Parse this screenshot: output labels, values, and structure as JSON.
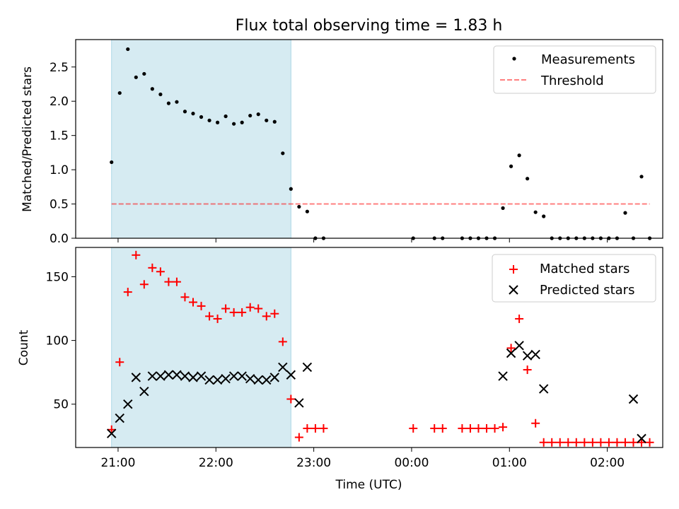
{
  "chart_data": {
    "type": "scatter",
    "title": "Flux total observing time = 1.83 h",
    "xlabel": "Time (UTC)",
    "x_tick_labels": [
      {
        "t": 1260,
        "label": "21:00"
      },
      {
        "t": 1320,
        "label": "22:00"
      },
      {
        "t": 1380,
        "label": "23:00"
      },
      {
        "t": 1440,
        "label": "00:00"
      },
      {
        "t": 1500,
        "label": "01:00"
      },
      {
        "t": 1560,
        "label": "02:00"
      }
    ],
    "xlim": [
      1234,
      1594
    ],
    "highlight_span": [
      1256,
      1366
    ],
    "colors": {
      "span": "#add8e6",
      "measurement": "#000000",
      "threshold": "#ff0000",
      "matched": "#ff0000",
      "predicted": "#000000"
    },
    "top": {
      "ylabel": "Matched/Predicted stars",
      "ylim": [
        0,
        2.9
      ],
      "yticks": [
        "0.0",
        "0.5",
        "1.0",
        "1.5",
        "2.0",
        "2.5"
      ],
      "threshold": 0.5,
      "legend": {
        "position": "upper right",
        "measurements": "Measurements",
        "threshold": "Threshold"
      },
      "measurements": [
        [
          1256,
          1.11
        ],
        [
          1261,
          2.12
        ],
        [
          1266,
          2.76
        ],
        [
          1271,
          2.35
        ],
        [
          1276,
          2.4
        ],
        [
          1281,
          2.18
        ],
        [
          1286,
          2.1
        ],
        [
          1291,
          1.97
        ],
        [
          1296,
          1.99
        ],
        [
          1301,
          1.85
        ],
        [
          1306,
          1.82
        ],
        [
          1311,
          1.77
        ],
        [
          1316,
          1.72
        ],
        [
          1321,
          1.69
        ],
        [
          1326,
          1.78
        ],
        [
          1331,
          1.67
        ],
        [
          1336,
          1.69
        ],
        [
          1341,
          1.79
        ],
        [
          1346,
          1.81
        ],
        [
          1351,
          1.72
        ],
        [
          1356,
          1.7
        ],
        [
          1361,
          1.24
        ],
        [
          1366,
          0.72
        ],
        [
          1371,
          0.46
        ],
        [
          1376,
          0.39
        ],
        [
          1381,
          0.0
        ],
        [
          1386,
          0.0
        ],
        [
          1441,
          0.0
        ],
        [
          1454,
          0.0
        ],
        [
          1459,
          0.0
        ],
        [
          1471,
          0.0
        ],
        [
          1476,
          0.0
        ],
        [
          1481,
          0.0
        ],
        [
          1486,
          0.0
        ],
        [
          1491,
          0.0
        ],
        [
          1496,
          0.44
        ],
        [
          1501,
          1.05
        ],
        [
          1506,
          1.21
        ],
        [
          1511,
          0.87
        ],
        [
          1516,
          0.38
        ],
        [
          1521,
          0.32
        ],
        [
          1526,
          0.0
        ],
        [
          1531,
          0.0
        ],
        [
          1536,
          0.0
        ],
        [
          1541,
          0.0
        ],
        [
          1546,
          0.0
        ],
        [
          1551,
          0.0
        ],
        [
          1556,
          0.0
        ],
        [
          1561,
          0.0
        ],
        [
          1566,
          0.0
        ],
        [
          1571,
          0.37
        ],
        [
          1576,
          0.0
        ],
        [
          1581,
          0.9
        ],
        [
          1586,
          0.0
        ]
      ]
    },
    "bottom": {
      "ylabel": "Count",
      "ylim": [
        16,
        173
      ],
      "yticks": [
        50,
        100,
        150
      ],
      "legend": {
        "position": "upper right",
        "matched": "Matched stars",
        "predicted": "Predicted stars"
      },
      "matched": [
        [
          1256,
          30
        ],
        [
          1261,
          83
        ],
        [
          1266,
          138
        ],
        [
          1271,
          167
        ],
        [
          1276,
          144
        ],
        [
          1281,
          157
        ],
        [
          1286,
          154
        ],
        [
          1291,
          146
        ],
        [
          1296,
          146
        ],
        [
          1301,
          134
        ],
        [
          1306,
          130
        ],
        [
          1311,
          127
        ],
        [
          1316,
          119
        ],
        [
          1321,
          117
        ],
        [
          1326,
          125
        ],
        [
          1331,
          122
        ],
        [
          1336,
          122
        ],
        [
          1341,
          126
        ],
        [
          1346,
          125
        ],
        [
          1351,
          119
        ],
        [
          1356,
          121
        ],
        [
          1361,
          99
        ],
        [
          1366,
          54
        ],
        [
          1371,
          24
        ],
        [
          1376,
          31
        ],
        [
          1381,
          31
        ],
        [
          1386,
          31
        ],
        [
          1441,
          31
        ],
        [
          1454,
          31
        ],
        [
          1459,
          31
        ],
        [
          1471,
          31
        ],
        [
          1476,
          31
        ],
        [
          1481,
          31
        ],
        [
          1486,
          31
        ],
        [
          1491,
          31
        ],
        [
          1496,
          32
        ],
        [
          1501,
          94
        ],
        [
          1506,
          117
        ],
        [
          1511,
          77
        ],
        [
          1516,
          35
        ],
        [
          1521,
          20
        ],
        [
          1526,
          20
        ],
        [
          1531,
          20
        ],
        [
          1536,
          20
        ],
        [
          1541,
          20
        ],
        [
          1546,
          20
        ],
        [
          1551,
          20
        ],
        [
          1556,
          20
        ],
        [
          1561,
          20
        ],
        [
          1566,
          20
        ],
        [
          1571,
          20
        ],
        [
          1576,
          20
        ],
        [
          1581,
          20
        ],
        [
          1586,
          20
        ]
      ],
      "predicted": [
        [
          1256,
          27
        ],
        [
          1261,
          39
        ],
        [
          1266,
          50
        ],
        [
          1271,
          71
        ],
        [
          1276,
          60
        ],
        [
          1281,
          72
        ],
        [
          1286,
          72
        ],
        [
          1291,
          73
        ],
        [
          1296,
          73
        ],
        [
          1301,
          72
        ],
        [
          1306,
          71
        ],
        [
          1311,
          72
        ],
        [
          1316,
          69
        ],
        [
          1321,
          69
        ],
        [
          1326,
          70
        ],
        [
          1331,
          72
        ],
        [
          1336,
          72
        ],
        [
          1341,
          70
        ],
        [
          1346,
          69
        ],
        [
          1351,
          69
        ],
        [
          1356,
          71
        ],
        [
          1361,
          79
        ],
        [
          1366,
          73
        ],
        [
          1371,
          51
        ],
        [
          1376,
          79
        ],
        [
          1496,
          72
        ],
        [
          1501,
          90
        ],
        [
          1506,
          96
        ],
        [
          1511,
          88
        ],
        [
          1516,
          89
        ],
        [
          1521,
          62
        ],
        [
          1576,
          54
        ],
        [
          1581,
          23
        ]
      ]
    }
  }
}
